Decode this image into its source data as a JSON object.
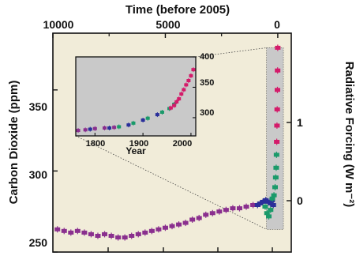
{
  "colors": {
    "main_background": "#f1ecd9",
    "inset_background": "#c9c9c9",
    "highlight_band": "#c9c9c9",
    "series_ice_core_a": "#8a2f8e",
    "series_ice_core_b": "#2a2f9a",
    "series_ice_core_c": "#1a9a6a",
    "series_atmospheric": "#d41b6a",
    "frame": "#111111"
  },
  "chart_data": [
    {
      "type": "scatter",
      "title": "",
      "xlabel": "Time (before 2005)",
      "ylabel": "Carbon Dioxide (ppm)",
      "y2label": "Radiative Forcing (W m⁻²)",
      "x_axis_position": "top",
      "xlim": [
        10000,
        -600
      ],
      "ylim": [
        250,
        385
      ],
      "xticks": [
        10000,
        5000,
        0
      ],
      "xtick_labels": [
        "10000",
        "5000",
        "0"
      ],
      "yticks": [
        250,
        300,
        350
      ],
      "ytick_labels": [
        "250",
        "300",
        "350"
      ],
      "y2ticks": [
        0,
        1
      ],
      "y2tick_labels": [
        "0",
        "1"
      ],
      "y2_zero_at_co2": 278,
      "highlighted_range_x": [
        0,
        500
      ],
      "series": [
        {
          "points": [
            {
              "x": 9800,
              "y": 264
            },
            {
              "x": 9500,
              "y": 263
            },
            {
              "x": 9200,
              "y": 262
            },
            {
              "x": 8900,
              "y": 263
            },
            {
              "x": 8600,
              "y": 262
            },
            {
              "x": 8300,
              "y": 261
            },
            {
              "x": 8000,
              "y": 260
            },
            {
              "x": 7700,
              "y": 261
            },
            {
              "x": 7400,
              "y": 260
            },
            {
              "x": 7100,
              "y": 259
            },
            {
              "x": 6800,
              "y": 259
            },
            {
              "x": 6500,
              "y": 260
            },
            {
              "x": 6200,
              "y": 261
            },
            {
              "x": 5900,
              "y": 262
            },
            {
              "x": 5600,
              "y": 263
            },
            {
              "x": 5300,
              "y": 264
            },
            {
              "x": 5000,
              "y": 265
            },
            {
              "x": 4700,
              "y": 266
            },
            {
              "x": 4400,
              "y": 267
            },
            {
              "x": 4100,
              "y": 268
            },
            {
              "x": 3800,
              "y": 270
            },
            {
              "x": 3500,
              "y": 271
            },
            {
              "x": 3200,
              "y": 273
            },
            {
              "x": 2900,
              "y": 274
            },
            {
              "x": 2600,
              "y": 275
            },
            {
              "x": 2300,
              "y": 276
            },
            {
              "x": 2000,
              "y": 277
            },
            {
              "x": 1700,
              "y": 277
            },
            {
              "x": 1400,
              "y": 278
            },
            {
              "x": 1100,
              "y": 279
            }
          ]
        },
        {
          "points": [
            {
              "x": 900,
              "y": 279
            },
            {
              "x": 780,
              "y": 280
            },
            {
              "x": 660,
              "y": 281
            },
            {
              "x": 540,
              "y": 282
            },
            {
              "x": 420,
              "y": 281
            },
            {
              "x": 320,
              "y": 280
            },
            {
              "x": 250,
              "y": 282
            },
            {
              "x": 200,
              "y": 279
            }
          ]
        },
        {
          "points": [
            {
              "x": 560,
              "y": 278
            },
            {
              "x": 480,
              "y": 274
            },
            {
              "x": 400,
              "y": 272
            },
            {
              "x": 320,
              "y": 276
            },
            {
              "x": 240,
              "y": 283
            },
            {
              "x": 170,
              "y": 285
            },
            {
              "x": 120,
              "y": 290
            },
            {
              "x": 90,
              "y": 296
            },
            {
              "x": 70,
              "y": 302
            },
            {
              "x": 55,
              "y": 310
            }
          ]
        },
        {
          "points": [
            {
              "x": 45,
              "y": 318
            },
            {
              "x": 35,
              "y": 328
            },
            {
              "x": 25,
              "y": 338
            },
            {
              "x": 15,
              "y": 350
            },
            {
              "x": 8,
              "y": 362
            },
            {
              "x": 2,
              "y": 376
            }
          ]
        }
      ]
    },
    {
      "type": "scatter",
      "title": "",
      "xlabel": "Year",
      "ylabel": "",
      "xlim": [
        1760,
        2010
      ],
      "ylim": [
        270,
        400
      ],
      "xticks": [
        1800,
        1900,
        2000
      ],
      "xtick_labels": [
        "1800",
        "1900",
        "2000"
      ],
      "yticks": [
        300,
        350,
        400
      ],
      "ytick_labels": [
        "300",
        "350",
        "400"
      ],
      "series": [
        {
          "points": [
            {
              "x": 1765,
              "y": 279
            },
            {
              "x": 1780,
              "y": 280
            },
            {
              "x": 1800,
              "y": 282
            },
            {
              "x": 1820,
              "y": 283
            },
            {
              "x": 1840,
              "y": 284
            }
          ]
        },
        {
          "points": [
            {
              "x": 1790,
              "y": 281
            },
            {
              "x": 1830,
              "y": 283
            },
            {
              "x": 1870,
              "y": 288
            },
            {
              "x": 1900,
              "y": 296
            },
            {
              "x": 1930,
              "y": 305
            }
          ]
        },
        {
          "points": [
            {
              "x": 1850,
              "y": 285
            },
            {
              "x": 1880,
              "y": 291
            },
            {
              "x": 1910,
              "y": 299
            },
            {
              "x": 1940,
              "y": 309
            },
            {
              "x": 1955,
              "y": 315
            },
            {
              "x": 1965,
              "y": 322
            }
          ]
        },
        {
          "points": [
            {
              "x": 1958,
              "y": 316
            },
            {
              "x": 1965,
              "y": 320
            },
            {
              "x": 1970,
              "y": 326
            },
            {
              "x": 1975,
              "y": 331
            },
            {
              "x": 1980,
              "y": 339
            },
            {
              "x": 1985,
              "y": 346
            },
            {
              "x": 1990,
              "y": 354
            },
            {
              "x": 1995,
              "y": 361
            },
            {
              "x": 2000,
              "y": 369
            },
            {
              "x": 2005,
              "y": 379
            }
          ]
        }
      ]
    }
  ]
}
